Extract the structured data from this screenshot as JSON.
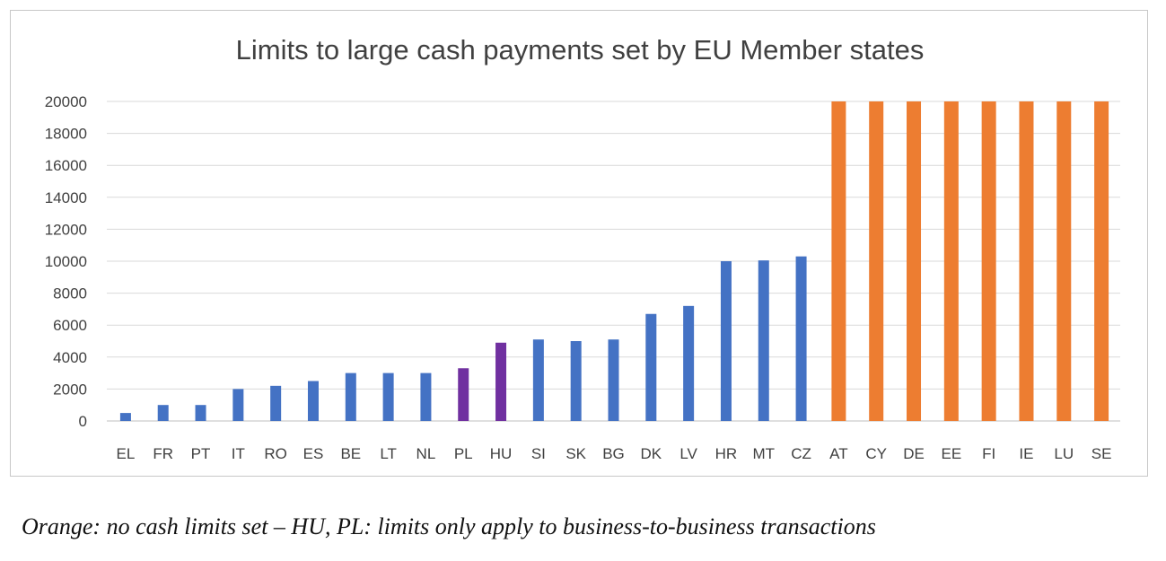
{
  "chart_data": {
    "type": "bar",
    "title": "Limits to large cash payments set by EU Member states",
    "xlabel": "",
    "ylabel": "",
    "ylim": [
      0,
      20000
    ],
    "yticks": [
      0,
      2000,
      4000,
      6000,
      8000,
      10000,
      12000,
      14000,
      16000,
      18000,
      20000
    ],
    "grid": true,
    "legend": "none",
    "categories": [
      "EL",
      "FR",
      "PT",
      "IT",
      "RO",
      "ES",
      "BE",
      "LT",
      "NL",
      "PL",
      "HU",
      "SI",
      "SK",
      "BG",
      "DK",
      "LV",
      "HR",
      "MT",
      "CZ",
      "AT",
      "CY",
      "DE",
      "EE",
      "FI",
      "IE",
      "LU",
      "SE"
    ],
    "values": [
      500,
      1000,
      1000,
      2000,
      2200,
      2500,
      3000,
      3000,
      3000,
      3300,
      4900,
      5100,
      5000,
      5100,
      6700,
      7200,
      10000,
      10050,
      10300,
      20000,
      20000,
      20000,
      20000,
      20000,
      20000,
      20000,
      20000
    ],
    "colors": {
      "default": "#4472c4",
      "business_to_business": "#7030a0",
      "no_limit": "#ed7d31"
    },
    "bar_colors": [
      "default",
      "default",
      "default",
      "default",
      "default",
      "default",
      "default",
      "default",
      "default",
      "business_to_business",
      "business_to_business",
      "default",
      "default",
      "default",
      "default",
      "default",
      "default",
      "default",
      "default",
      "no_limit",
      "no_limit",
      "no_limit",
      "no_limit",
      "no_limit",
      "no_limit",
      "no_limit",
      "no_limit"
    ]
  },
  "note": "Orange: no cash limits set – HU, PL: limits only apply to business-to-business transactions"
}
